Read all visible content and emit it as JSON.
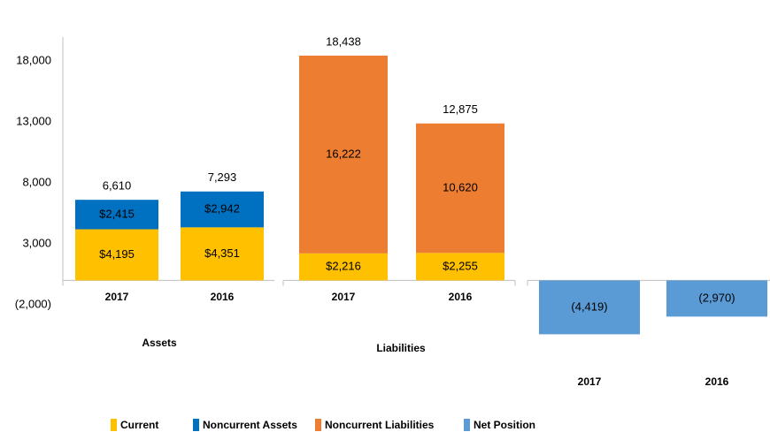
{
  "chart_data": {
    "type": "stacked_bar",
    "categories": [
      "2017",
      "2016",
      "2017",
      "2016",
      "2017",
      "2016"
    ],
    "group_labels": [
      "Assets",
      "Liabilities"
    ],
    "series": [
      {
        "name": "Current",
        "color": "#ffc000",
        "values": [
          4195,
          4351,
          2216,
          2255,
          null,
          null
        ],
        "value_labels": [
          "$4,195",
          "$4,351",
          "$2,216",
          "$2,255",
          null,
          null
        ]
      },
      {
        "name": "Noncurrent Assets",
        "color": "#0070c0",
        "values": [
          2415,
          2942,
          null,
          null,
          null,
          null
        ],
        "value_labels": [
          "$2,415",
          "$2,942",
          null,
          null,
          null,
          null
        ]
      },
      {
        "name": "Noncurrent Liabilities",
        "color": "#ed7d31",
        "values": [
          null,
          null,
          16222,
          10620,
          null,
          null
        ],
        "value_labels": [
          null,
          null,
          "16,222",
          "10,620",
          null,
          null
        ]
      },
      {
        "name": "Net Position",
        "color": "#5b9bd5",
        "values": [
          null,
          null,
          null,
          null,
          -4419,
          -2970
        ],
        "value_labels": [
          null,
          null,
          null,
          null,
          "(4,419)",
          "(2,970)"
        ]
      }
    ],
    "totals": {
      "values": [
        6610,
        7293,
        18438,
        12875,
        null,
        null
      ],
      "value_labels": [
        "6,610",
        "7,293",
        "18,438",
        "12,875",
        null,
        null
      ]
    },
    "ylim": [
      -5000,
      20000
    ],
    "yticks": [
      {
        "value": -2000,
        "label": "(2,000)"
      },
      {
        "value": 3000,
        "label": "3,000"
      },
      {
        "value": 8000,
        "label": "8,000"
      },
      {
        "value": 13000,
        "label": "13,000"
      },
      {
        "value": 18000,
        "label": "18,000"
      }
    ],
    "legend": "bottom"
  }
}
